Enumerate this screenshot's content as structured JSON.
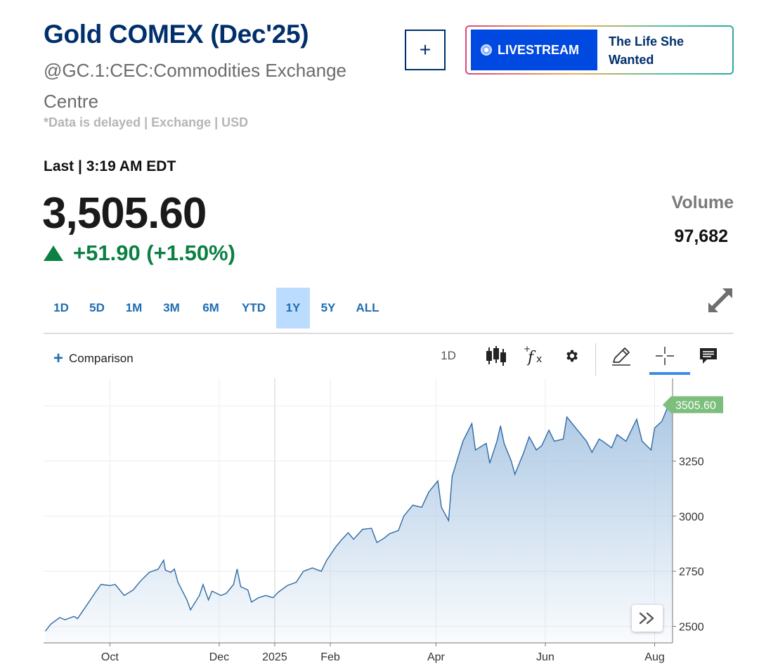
{
  "header": {
    "title": "Gold COMEX (Dec'25)",
    "symbol": "@GC.1:CEC:Commodities Exchange Centre",
    "delay_note": "*Data is delayed | Exchange | USD"
  },
  "livestream": {
    "button_label": "LIVESTREAM",
    "program": "The Life She Wanted"
  },
  "quote": {
    "last_label": "Last | 3:19 AM EDT",
    "price": "3,505.60",
    "change": "+51.90 (+1.50%)",
    "volume_label": "Volume",
    "volume_value": "97,682",
    "up_color": "#0b8043"
  },
  "range_tabs": [
    {
      "label": "1D",
      "active": false
    },
    {
      "label": "5D",
      "active": false
    },
    {
      "label": "1M",
      "active": false
    },
    {
      "label": "3M",
      "active": false
    },
    {
      "label": "6M",
      "active": false
    },
    {
      "label": "YTD",
      "active": false
    },
    {
      "label": "1Y",
      "active": true
    },
    {
      "label": "5Y",
      "active": false
    },
    {
      "label": "ALL",
      "active": false
    }
  ],
  "toolbar": {
    "comparison_label": "Comparison",
    "interval_label": "1D",
    "icons": [
      "candlestick-icon",
      "indicator-fx-icon",
      "settings-gear-icon",
      "draw-pencil-icon",
      "crosshair-icon",
      "comment-icon"
    ]
  },
  "chart_data": {
    "type": "area",
    "title": "",
    "xlabel": "",
    "ylabel": "",
    "ylim": [
      2425,
      3625
    ],
    "y_ticks": [
      2500,
      2750,
      3000,
      3250
    ],
    "x_tick_labels": [
      "Oct",
      "Dec",
      "2025",
      "Feb",
      "Apr",
      "Jun",
      "Aug"
    ],
    "last_value_label": "3505.60",
    "line_color": "#2e6aa5",
    "fill_color": "#a9c6e3",
    "last_badge_color": "#7cbe7c",
    "grid": true,
    "series": [
      {
        "values": [
          {
            "x": "2024-08-26",
            "y": 2478
          },
          {
            "x": "2024-08-29",
            "y": 2510
          },
          {
            "x": "2024-09-03",
            "y": 2540
          },
          {
            "x": "2024-09-06",
            "y": 2530
          },
          {
            "x": "2024-09-11",
            "y": 2545
          },
          {
            "x": "2024-09-13",
            "y": 2535
          },
          {
            "x": "2024-09-18",
            "y": 2595
          },
          {
            "x": "2024-09-23",
            "y": 2655
          },
          {
            "x": "2024-09-26",
            "y": 2690
          },
          {
            "x": "2024-10-01",
            "y": 2685
          },
          {
            "x": "2024-10-04",
            "y": 2690
          },
          {
            "x": "2024-10-09",
            "y": 2640
          },
          {
            "x": "2024-10-14",
            "y": 2665
          },
          {
            "x": "2024-10-18",
            "y": 2705
          },
          {
            "x": "2024-10-23",
            "y": 2745
          },
          {
            "x": "2024-10-28",
            "y": 2760
          },
          {
            "x": "2024-10-31",
            "y": 2800
          },
          {
            "x": "2024-11-01",
            "y": 2755
          },
          {
            "x": "2024-11-04",
            "y": 2745
          },
          {
            "x": "2024-11-06",
            "y": 2760
          },
          {
            "x": "2024-11-08",
            "y": 2700
          },
          {
            "x": "2024-11-13",
            "y": 2620
          },
          {
            "x": "2024-11-15",
            "y": 2575
          },
          {
            "x": "2024-11-20",
            "y": 2640
          },
          {
            "x": "2024-11-22",
            "y": 2690
          },
          {
            "x": "2024-11-25",
            "y": 2620
          },
          {
            "x": "2024-11-27",
            "y": 2660
          },
          {
            "x": "2024-12-02",
            "y": 2640
          },
          {
            "x": "2024-12-05",
            "y": 2650
          },
          {
            "x": "2024-12-09",
            "y": 2690
          },
          {
            "x": "2024-12-11",
            "y": 2760
          },
          {
            "x": "2024-12-13",
            "y": 2680
          },
          {
            "x": "2024-12-17",
            "y": 2665
          },
          {
            "x": "2024-12-19",
            "y": 2610
          },
          {
            "x": "2024-12-23",
            "y": 2630
          },
          {
            "x": "2024-12-27",
            "y": 2640
          },
          {
            "x": "2024-12-31",
            "y": 2630
          },
          {
            "x": "2025-01-03",
            "y": 2655
          },
          {
            "x": "2025-01-08",
            "y": 2685
          },
          {
            "x": "2025-01-13",
            "y": 2700
          },
          {
            "x": "2025-01-17",
            "y": 2750
          },
          {
            "x": "2025-01-22",
            "y": 2765
          },
          {
            "x": "2025-01-27",
            "y": 2750
          },
          {
            "x": "2025-01-30",
            "y": 2800
          },
          {
            "x": "2025-02-04",
            "y": 2860
          },
          {
            "x": "2025-02-07",
            "y": 2890
          },
          {
            "x": "2025-02-11",
            "y": 2925
          },
          {
            "x": "2025-02-14",
            "y": 2895
          },
          {
            "x": "2025-02-19",
            "y": 2940
          },
          {
            "x": "2025-02-24",
            "y": 2945
          },
          {
            "x": "2025-02-27",
            "y": 2880
          },
          {
            "x": "2025-03-03",
            "y": 2900
          },
          {
            "x": "2025-03-06",
            "y": 2920
          },
          {
            "x": "2025-03-11",
            "y": 2935
          },
          {
            "x": "2025-03-14",
            "y": 3000
          },
          {
            "x": "2025-03-19",
            "y": 3050
          },
          {
            "x": "2025-03-24",
            "y": 3040
          },
          {
            "x": "2025-03-28",
            "y": 3110
          },
          {
            "x": "2025-04-02",
            "y": 3160
          },
          {
            "x": "2025-04-04",
            "y": 3040
          },
          {
            "x": "2025-04-08",
            "y": 2980
          },
          {
            "x": "2025-04-10",
            "y": 3180
          },
          {
            "x": "2025-04-16",
            "y": 3340
          },
          {
            "x": "2025-04-21",
            "y": 3420
          },
          {
            "x": "2025-04-23",
            "y": 3300
          },
          {
            "x": "2025-04-25",
            "y": 3310
          },
          {
            "x": "2025-04-29",
            "y": 3330
          },
          {
            "x": "2025-05-01",
            "y": 3240
          },
          {
            "x": "2025-05-05",
            "y": 3340
          },
          {
            "x": "2025-05-07",
            "y": 3410
          },
          {
            "x": "2025-05-09",
            "y": 3330
          },
          {
            "x": "2025-05-13",
            "y": 3250
          },
          {
            "x": "2025-05-15",
            "y": 3190
          },
          {
            "x": "2025-05-20",
            "y": 3290
          },
          {
            "x": "2025-05-23",
            "y": 3360
          },
          {
            "x": "2025-05-27",
            "y": 3300
          },
          {
            "x": "2025-05-30",
            "y": 3320
          },
          {
            "x": "2025-06-03",
            "y": 3390
          },
          {
            "x": "2025-06-06",
            "y": 3340
          },
          {
            "x": "2025-06-11",
            "y": 3350
          },
          {
            "x": "2025-06-13",
            "y": 3450
          },
          {
            "x": "2025-06-17",
            "y": 3410
          },
          {
            "x": "2025-06-20",
            "y": 3380
          },
          {
            "x": "2025-06-24",
            "y": 3340
          },
          {
            "x": "2025-06-27",
            "y": 3290
          },
          {
            "x": "2025-07-01",
            "y": 3350
          },
          {
            "x": "2025-07-03",
            "y": 3340
          },
          {
            "x": "2025-07-08",
            "y": 3310
          },
          {
            "x": "2025-07-11",
            "y": 3370
          },
          {
            "x": "2025-07-16",
            "y": 3340
          },
          {
            "x": "2025-07-22",
            "y": 3440
          },
          {
            "x": "2025-07-25",
            "y": 3340
          },
          {
            "x": "2025-07-30",
            "y": 3300
          },
          {
            "x": "2025-08-01",
            "y": 3400
          },
          {
            "x": "2025-08-05",
            "y": 3430
          },
          {
            "x": "2025-08-08",
            "y": 3490
          },
          {
            "x": "2025-08-11",
            "y": 3505.6
          }
        ]
      }
    ]
  }
}
